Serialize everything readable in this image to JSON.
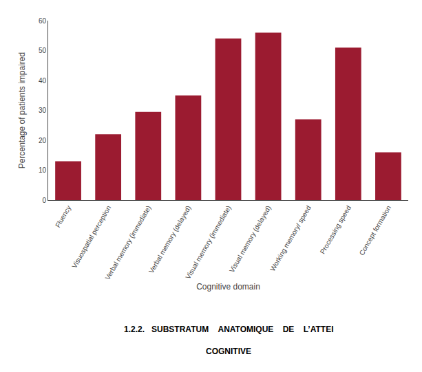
{
  "chart_data": {
    "type": "bar",
    "categories": [
      "Fluency",
      "Visuospatial perception",
      "Verbal memory (immediate)",
      "Verbal memory (delayed)",
      "Visual memory (immediate)",
      "Visual memory (delayed)",
      "Working memory/ speed",
      "Processing speed",
      "Concept formation"
    ],
    "values": [
      13,
      22,
      29.5,
      35,
      54,
      56,
      27,
      51,
      16
    ],
    "color": "#9B1B30",
    "xlabel": "Cognitive domain",
    "ylabel": "Percentage of patients impaired",
    "ylim": [
      0,
      60
    ],
    "yticks": [
      0,
      10,
      20,
      30,
      40,
      50,
      60
    ],
    "grid": false,
    "annotations": [
      "1.2.2.   SUBSTRATUM    ANATOMIQUE    DE    L’ATTEI",
      "COGNITIVE"
    ]
  }
}
